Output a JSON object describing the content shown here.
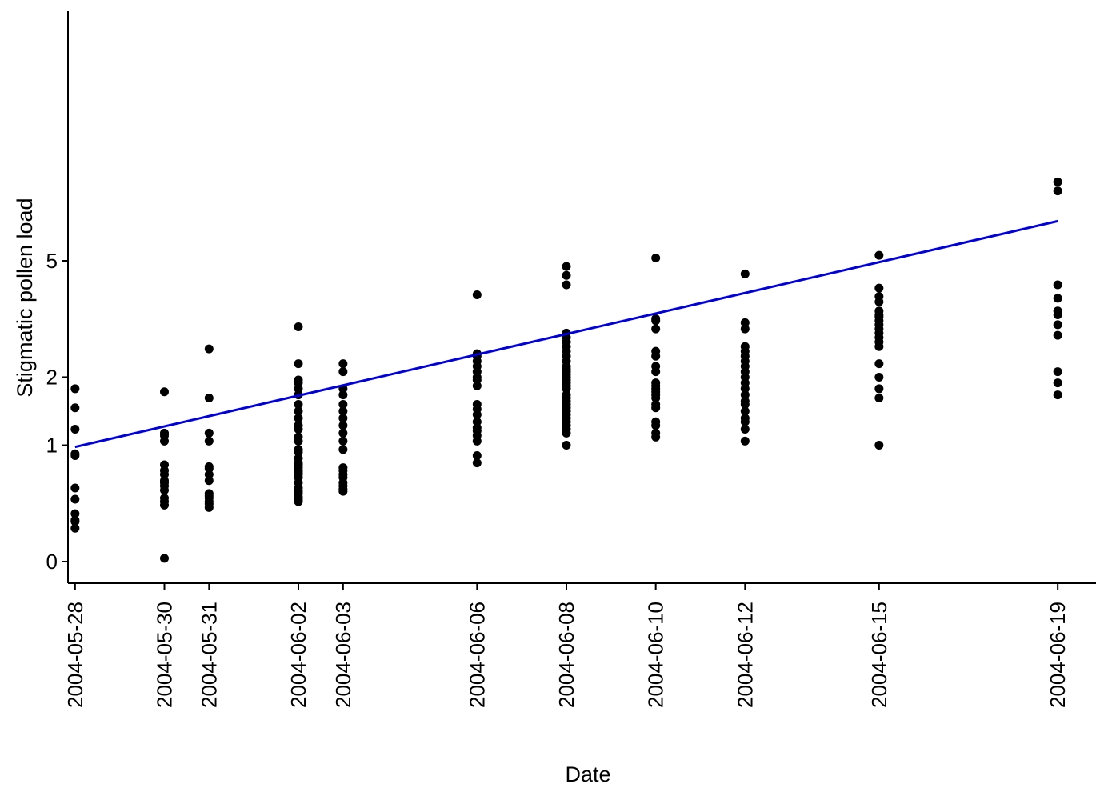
{
  "chart_data": {
    "type": "scatter",
    "title": "",
    "xlabel": "Date",
    "ylabel": "Stigmatic pollen load",
    "y_scale": "log(y+1)",
    "y_ticks": [
      0,
      1,
      2,
      5
    ],
    "y_tick_labels": [
      "0",
      "1",
      "2",
      "5"
    ],
    "x_ticks": [
      "2004-05-28",
      "2004-05-30",
      "2004-05-31",
      "2004-06-02",
      "2004-06-03",
      "2004-06-06",
      "2004-06-08",
      "2004-06-10",
      "2004-06-12",
      "2004-06-15",
      "2004-06-19"
    ],
    "xlim": [
      "2004-05-27",
      "2004-06-20"
    ],
    "grid": false,
    "point_color": "#000000",
    "line_color": "#0000dd",
    "series": [
      {
        "type": "scatter",
        "points": [
          {
            "x": "2004-05-28",
            "y": [
              1.8,
              1.5,
              1.2,
              0.9,
              0.88,
              0.55,
              0.45,
              0.33,
              0.28,
              0.27,
              0.22
            ]
          },
          {
            "x": "2004-05-30",
            "y": [
              1.75,
              1.15,
              1.12,
              1.05,
              0.78,
              0.72,
              0.68,
              0.62,
              0.6,
              0.57,
              0.53,
              0.46,
              0.43,
              0.4,
              0.02
            ]
          },
          {
            "x": "2004-05-31",
            "y": [
              2.55,
              1.65,
              1.15,
              1.05,
              0.76,
              0.74,
              0.68,
              0.62,
              0.5,
              0.48,
              0.46,
              0.43,
              0.41,
              0.38
            ]
          },
          {
            "x": "2004-06-02",
            "y": [
              3.05,
              2.25,
              1.95,
              1.9,
              1.8,
              1.7,
              1.55,
              1.45,
              1.35,
              1.25,
              1.2,
              1.1,
              1.05,
              0.95,
              0.92,
              0.85,
              0.8,
              0.78,
              0.75,
              0.72,
              0.7,
              0.68,
              0.65,
              0.6,
              0.55,
              0.52,
              0.5,
              0.47,
              0.45,
              0.43
            ]
          },
          {
            "x": "2004-06-03",
            "y": [
              2.25,
              2.1,
              1.8,
              1.7,
              1.55,
              1.45,
              1.35,
              1.25,
              1.15,
              1.05,
              0.95,
              0.75,
              0.72,
              0.68,
              0.65,
              0.6,
              0.57,
              0.54,
              0.52
            ]
          },
          {
            "x": "2004-06-06",
            "y": [
              3.9,
              2.45,
              2.4,
              2.3,
              2.2,
              2.1,
              2.0,
              1.95,
              1.85,
              1.55,
              1.48,
              1.4,
              1.3,
              1.22,
              1.18,
              1.12,
              1.05,
              0.88,
              0.8
            ]
          },
          {
            "x": "2004-06-08",
            "y": [
              4.8,
              4.5,
              4.2,
              2.9,
              2.8,
              2.7,
              2.6,
              2.5,
              2.4,
              2.3,
              2.2,
              2.15,
              2.1,
              2.05,
              2.0,
              1.95,
              1.9,
              1.85,
              1.8,
              1.7,
              1.65,
              1.6,
              1.55,
              1.5,
              1.45,
              1.4,
              1.35,
              1.3,
              1.25,
              1.2,
              1.15,
              1.0
            ]
          },
          {
            "x": "2004-06-10",
            "y": [
              5.1,
              3.25,
              3.2,
              3.0,
              2.5,
              2.4,
              2.2,
              2.1,
              1.9,
              1.85,
              1.8,
              1.75,
              1.7,
              1.65,
              1.55,
              1.5,
              1.3,
              1.25,
              1.15,
              1.1
            ]
          },
          {
            "x": "2004-06-12",
            "y": [
              4.55,
              3.15,
              3.0,
              2.6,
              2.5,
              2.4,
              2.3,
              2.2,
              2.1,
              2.0,
              1.9,
              1.8,
              1.7,
              1.6,
              1.55,
              1.45,
              1.35,
              1.3,
              1.2,
              1.05
            ]
          },
          {
            "x": "2004-06-15",
            "y": [
              5.2,
              4.1,
              3.85,
              3.7,
              3.45,
              3.35,
              3.3,
              3.2,
              3.1,
              3.0,
              2.9,
              2.8,
              2.7,
              2.6,
              2.25,
              2.0,
              1.8,
              1.65,
              1.0
            ]
          },
          {
            "x": "2004-06-19",
            "y": [
              8.6,
              8.1,
              4.2,
              3.8,
              3.45,
              3.35,
              3.1,
              2.85,
              2.1,
              1.9,
              1.7
            ]
          }
        ]
      },
      {
        "type": "line",
        "points": [
          {
            "x": "2004-05-28",
            "y": 0.98
          },
          {
            "x": "2004-06-19",
            "y": 6.6
          }
        ]
      }
    ]
  }
}
